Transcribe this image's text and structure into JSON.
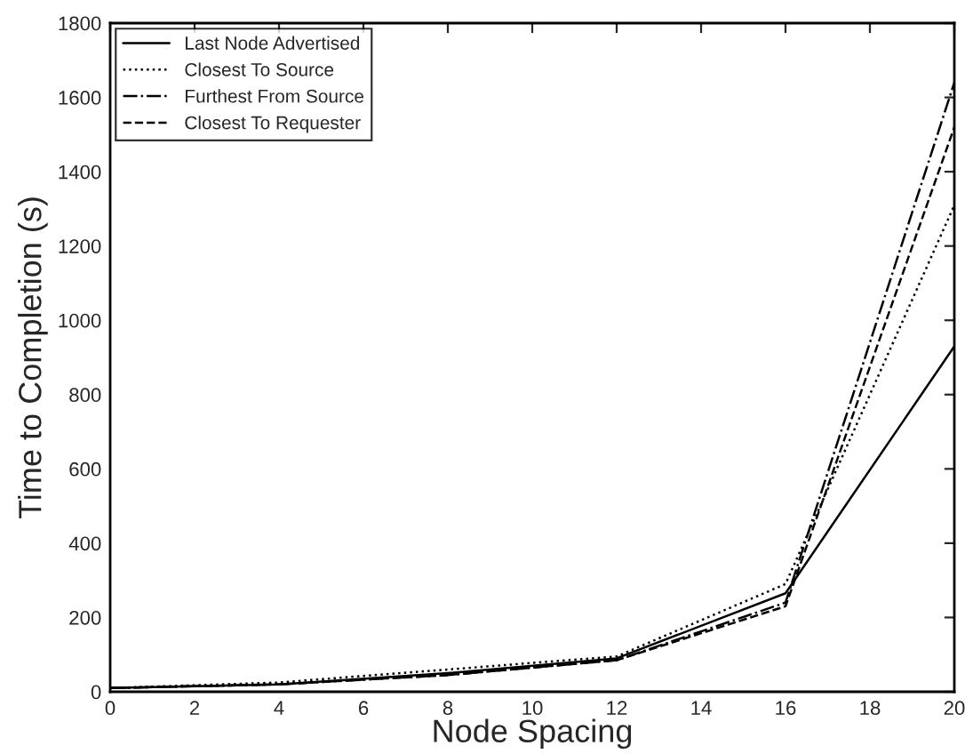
{
  "chart_data": {
    "type": "line",
    "xlabel": "Node Spacing",
    "ylabel": "Time to Completion (s)",
    "xlim": [
      0,
      20
    ],
    "ylim": [
      0,
      1800
    ],
    "xticks": [
      0,
      2,
      4,
      6,
      8,
      10,
      12,
      14,
      16,
      18,
      20
    ],
    "yticks": [
      0,
      200,
      400,
      600,
      800,
      1000,
      1200,
      1400,
      1600,
      1800
    ],
    "grid": false,
    "legend": "top left",
    "marker": "none",
    "x": [
      0,
      4,
      8,
      12,
      16,
      20
    ],
    "series": [
      {
        "name": "Last Node Advertised",
        "color": "#000000",
        "line_style": "solid",
        "values": [
          10,
          20,
          50,
          90,
          265,
          930
        ]
      },
      {
        "name": "Closest To Source",
        "color": "#000000",
        "line_style": "dotted",
        "values": [
          10,
          25,
          60,
          95,
          290,
          1310
        ]
      },
      {
        "name": "Furthest From Source",
        "color": "#000000",
        "line_style": "dashdot",
        "values": [
          10,
          20,
          45,
          85,
          240,
          1640
        ]
      },
      {
        "name": "Closest To Requester",
        "color": "#000000",
        "line_style": "dashed",
        "values": [
          10,
          20,
          45,
          85,
          230,
          1520
        ]
      }
    ]
  }
}
